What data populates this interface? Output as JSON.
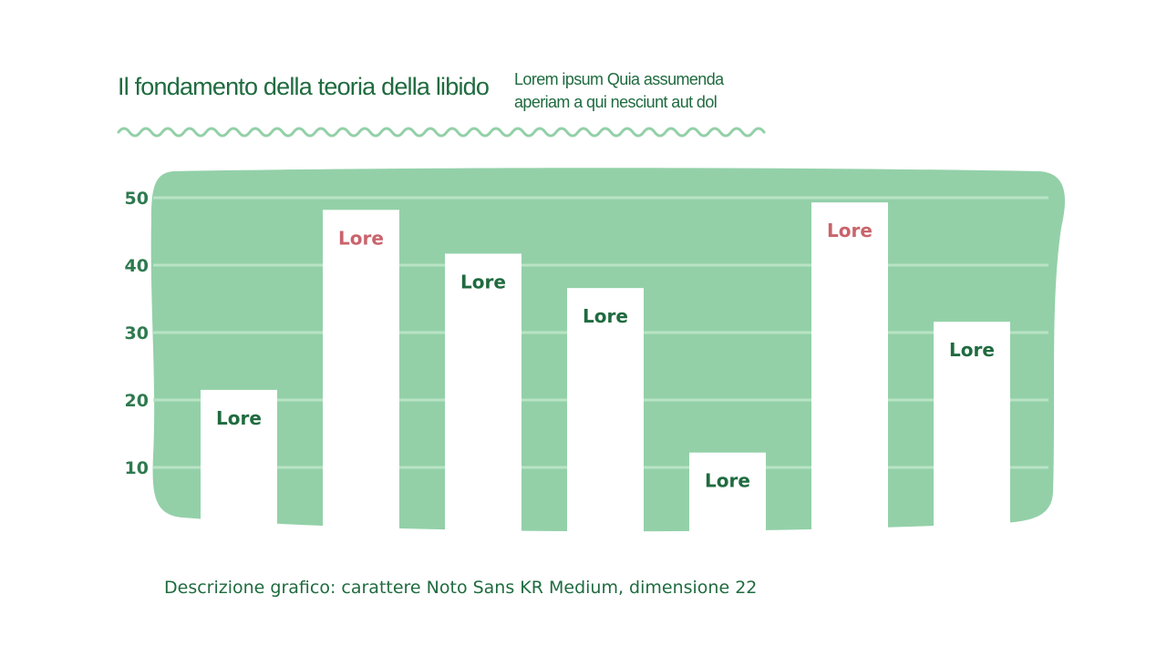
{
  "header": {
    "title": "Il fondamento della teoria della libido",
    "subtitle": "Lorem ipsum Quia assumenda aperiam a qui nesciunt aut dol"
  },
  "chart_data": {
    "type": "bar",
    "categories": [
      "",
      "",
      "",
      "",
      "",
      "",
      ""
    ],
    "values": [
      21.5,
      48.2,
      41.7,
      36.6,
      12.2,
      49.3,
      31.6
    ],
    "data_labels": [
      "Lore",
      "Lore",
      "Lore",
      "Lore",
      "Lore",
      "Lore",
      "Lore"
    ],
    "label_colors": [
      "#1f6b3f",
      "#c9646c",
      "#1f6b3f",
      "#1f6b3f",
      "#1f6b3f",
      "#c9646c",
      "#1f6b3f"
    ],
    "yticks": [
      "10",
      "20",
      "30",
      "40",
      "50"
    ],
    "ylim": [
      0,
      50
    ],
    "grid": true,
    "colors": {
      "panel": "#93d0a8",
      "bar": "#ffffff",
      "grid": "#b9e3c5",
      "axis_text": "#2e7a4f"
    }
  },
  "footer": {
    "description": "Descrizione grafico: carattere Noto Sans KR Medium, dimensione 22"
  }
}
